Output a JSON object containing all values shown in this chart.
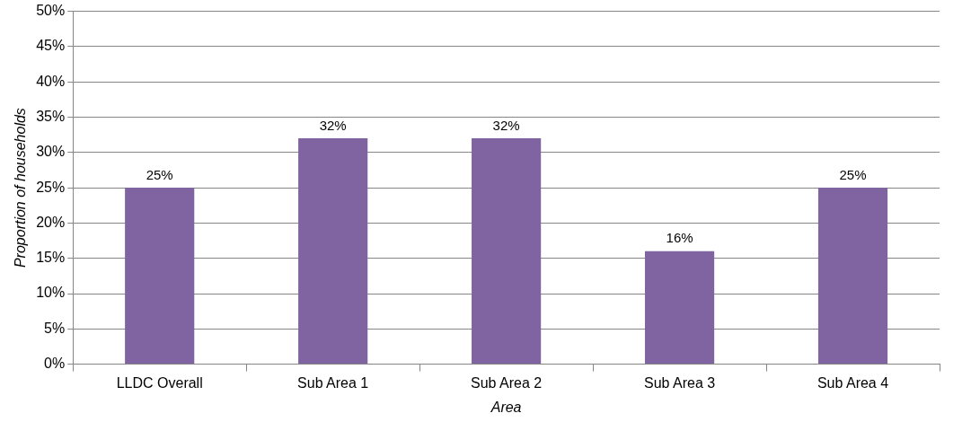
{
  "chart_data": {
    "type": "bar",
    "xlabel": "Area",
    "ylabel": "Proportion of households",
    "categories": [
      "LLDC Overall",
      "Sub Area 1",
      "Sub Area 2",
      "Sub Area 3",
      "Sub Area 4"
    ],
    "values": [
      25,
      32,
      32,
      16,
      25
    ],
    "value_labels": [
      "25%",
      "32%",
      "32%",
      "16%",
      "25%"
    ],
    "color": "#8064a2",
    "ylim": [
      0,
      50
    ],
    "yticks": [
      {
        "value": 0,
        "label": "0%"
      },
      {
        "value": 5,
        "label": "5%"
      },
      {
        "value": 10,
        "label": "10%"
      },
      {
        "value": 15,
        "label": "15%"
      },
      {
        "value": 20,
        "label": "20%"
      },
      {
        "value": 25,
        "label": "25%"
      },
      {
        "value": 30,
        "label": "30%"
      },
      {
        "value": 35,
        "label": "35%"
      },
      {
        "value": 40,
        "label": "40%"
      },
      {
        "value": 45,
        "label": "45%"
      },
      {
        "value": 50,
        "label": "50%"
      }
    ],
    "grid": "y",
    "legend": false
  }
}
